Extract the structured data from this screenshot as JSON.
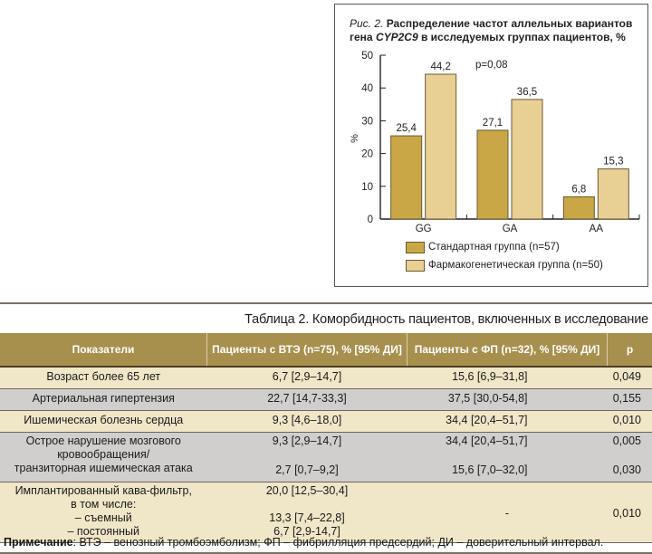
{
  "figure": {
    "caption_prefix": "Рис. 2.",
    "caption_part1": "Распределение частот аллельных вариантов гена",
    "caption_gene": "CYP2C9",
    "caption_part2": "в исследуемых группах пациентов, %"
  },
  "chart_data": {
    "type": "bar",
    "title": "Рис. 2. Распределение частот аллельных вариантов гена CYP2C9 в исследуемых группах пациентов, %",
    "categories": [
      "GG",
      "GA",
      "AA"
    ],
    "series": [
      {
        "name": "Стандартная группа (n=57)",
        "values": [
          25.4,
          27.1,
          6.8
        ],
        "labels": [
          "25,4",
          "27,1",
          "6,8"
        ],
        "color": "#c9a646"
      },
      {
        "name": "Фармакогенетическая группа (n=50)",
        "values": [
          44.2,
          36.5,
          15.3
        ],
        "labels": [
          "44,2",
          "36,5",
          "15,3"
        ],
        "color": "#e8cf94"
      }
    ],
    "ylabel": "%",
    "xlabel": "",
    "ylim": [
      0,
      50
    ],
    "yticks": [
      0,
      10,
      20,
      30,
      40,
      50
    ],
    "annotation": "p=0,08",
    "legend_position": "bottom",
    "grid": false
  },
  "table": {
    "caption": "Таблица 2. Коморбидность пациентов, включенных в исследование",
    "headers": [
      "Показатели",
      "Пациенты с ВТЭ (n=75), % [95% ДИ]",
      "Пациенты с ФП (n=32), % [95% ДИ]",
      "p"
    ],
    "rows": [
      {
        "label": [
          "Возраст более 65 лет"
        ],
        "vte": [
          "6,7 [2,9–14,7]"
        ],
        "fp": [
          "15,6 [6,9–31,8]"
        ],
        "p": [
          "0,049"
        ]
      },
      {
        "label": [
          "Артериальная гипертензия"
        ],
        "vte": [
          "22,7 [14,7-33,3]"
        ],
        "fp": [
          "37,5 [30,0-54,8]"
        ],
        "p": [
          "0,155"
        ]
      },
      {
        "label": [
          "Ишемическая болезнь сердца"
        ],
        "vte": [
          "9,3 [4,6–18,0]"
        ],
        "fp": [
          "34,4 [20,4–51,7]"
        ],
        "p": [
          "0,010"
        ]
      },
      {
        "label": [
          "Острое нарушение мозгового",
          "кровообращения/",
          "транзиторная ишемическая атака"
        ],
        "vte": [
          "9,3 [2,9–14,7]",
          "",
          "2,7 [0,7–9,2]"
        ],
        "fp": [
          "34,4 [20,4–51,7]",
          "",
          "15,6 [7,0–32,0]"
        ],
        "p": [
          "0,005",
          "",
          "0,030"
        ]
      },
      {
        "label": [
          "Имплантированный кава-фильтр,",
          "в том числе:",
          "– съемный",
          "– постоянный"
        ],
        "vte": [
          "20,0 [12,5–30,4]",
          "",
          "13,3 [7,4–22,8]",
          "6,7 [2,9-14,7]"
        ],
        "fp": [
          "-"
        ],
        "p": [
          "0,010"
        ]
      }
    ]
  },
  "note": {
    "label": "Примечание",
    "text": ": ВТЭ – венозный тромбоэмболизм; ФП – фибрилляция предсердий; ДИ – доверительный интервал."
  }
}
